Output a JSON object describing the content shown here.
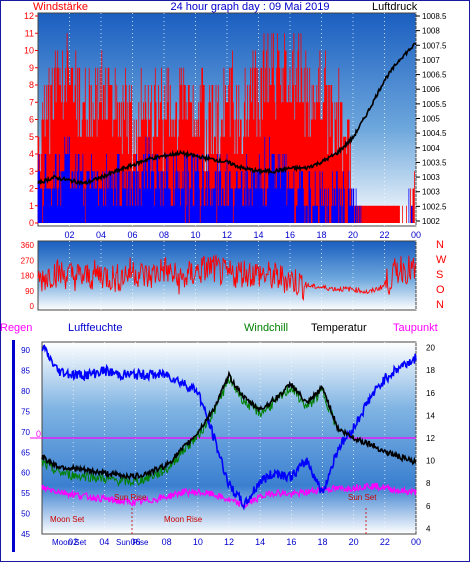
{
  "chart_data": [
    {
      "type": "line",
      "title": "24 hour graph day : 09 Mai 2019",
      "left_axis_label": "Windstärke",
      "right_axis_label": "Luftdruck",
      "x_ticks": [
        "02",
        "04",
        "06",
        "08",
        "10",
        "12",
        "14",
        "16",
        "18",
        "20",
        "22",
        "00"
      ],
      "left_ticks": [
        "0",
        "1",
        "2",
        "3",
        "4",
        "5",
        "6",
        "7",
        "8",
        "9",
        "10",
        "11",
        "12"
      ],
      "right_ticks": [
        "1002",
        "1002.5",
        "1003",
        "1003",
        "1003.5",
        "1004",
        "1004.5",
        "1005",
        "1005.5",
        "1006",
        "1006.5",
        "1007",
        "1007.5",
        "1008",
        "1008.5"
      ],
      "ylim_left": [
        0,
        12
      ],
      "ylim_right": [
        1001.5,
        1008.5
      ],
      "series": [
        {
          "name": "Windstärke",
          "color": "#ff0000",
          "kind": "gust-bars",
          "x": [
            0,
            1,
            2,
            3,
            4,
            5,
            6,
            7,
            8,
            9,
            10,
            11,
            12,
            13,
            14,
            15,
            16,
            17,
            18,
            19,
            20,
            21,
            22,
            23,
            24
          ],
          "values": [
            6,
            9,
            10,
            8,
            9,
            8,
            7,
            8,
            8,
            9,
            8,
            7,
            9,
            8,
            9,
            11,
            10,
            10,
            9,
            8,
            4,
            1,
            1,
            1,
            3
          ]
        },
        {
          "name": "wind-average",
          "color": "#0000ff",
          "kind": "avg-bars",
          "x": [
            0,
            1,
            2,
            3,
            4,
            5,
            6,
            7,
            8,
            9,
            10,
            11,
            12,
            13,
            14,
            15,
            16,
            17,
            18,
            19,
            20,
            21,
            22,
            23,
            24
          ],
          "values": [
            3,
            3,
            4,
            3,
            3,
            3,
            3,
            4,
            3,
            3,
            3,
            3,
            3,
            3,
            3,
            4,
            3,
            2,
            2,
            2,
            2,
            0,
            0,
            0,
            1
          ]
        },
        {
          "name": "Luftdruck",
          "color": "#000000",
          "kind": "line",
          "x": [
            0,
            1,
            2,
            3,
            4,
            5,
            6,
            7,
            8,
            9,
            10,
            11,
            12,
            13,
            14,
            15,
            16,
            17,
            18,
            19,
            20,
            21,
            22,
            23,
            24
          ],
          "values": [
            1002.9,
            1003.1,
            1003.0,
            1002.9,
            1003.1,
            1003.3,
            1003.5,
            1003.7,
            1003.8,
            1003.9,
            1003.8,
            1003.7,
            1003.6,
            1003.4,
            1003.3,
            1003.3,
            1003.4,
            1003.4,
            1003.6,
            1003.9,
            1004.4,
            1005.3,
            1006.3,
            1007.0,
            1007.5
          ]
        }
      ]
    },
    {
      "type": "line",
      "title": "",
      "right_labels": [
        "N",
        "W",
        "S",
        "O",
        "N"
      ],
      "left_ticks": [
        "360",
        "270",
        "180",
        "90",
        "0"
      ],
      "ylim": [
        0,
        360
      ],
      "series": [
        {
          "name": "wind-direction",
          "color": "#ff0000",
          "x": [
            0,
            1,
            2,
            3,
            4,
            5,
            6,
            7,
            8,
            9,
            10,
            11,
            12,
            13,
            14,
            15,
            16,
            17,
            18,
            19,
            20,
            21,
            22,
            23,
            24
          ],
          "values": [
            150,
            200,
            180,
            170,
            190,
            160,
            210,
            170,
            220,
            150,
            200,
            230,
            180,
            200,
            190,
            170,
            160,
            120,
            110,
            100,
            100,
            80,
            120,
            230,
            200
          ]
        }
      ]
    },
    {
      "type": "line",
      "title": "",
      "labels": {
        "regen": "Regen",
        "luftfeuchte": "Luftfeuchte",
        "windchill": "Windchill",
        "temperatur": "Temperatur",
        "taupunkt": "Taupunkt"
      },
      "left_ticks": [
        "45",
        "50",
        "55",
        "60",
        "65",
        "70",
        "75",
        "80",
        "85",
        "90"
      ],
      "right_ticks": [
        "4",
        "6",
        "8",
        "10",
        "12",
        "14",
        "16",
        "18",
        "20"
      ],
      "x_ticks": [
        "02",
        "04",
        "06",
        "08",
        "10",
        "12",
        "14",
        "16",
        "18",
        "20",
        "22",
        "00"
      ],
      "ylim_left": [
        45,
        92
      ],
      "ylim_right": [
        3.5,
        20.5
      ],
      "rain_value": "0",
      "annotations": [
        "Moon Set",
        "Sun Rise",
        "Moon Rise",
        "Sun Set"
      ],
      "x_event_labels": [
        "Moon Set",
        "Sun Rise"
      ],
      "series": [
        {
          "name": "Luftfeuchte",
          "color": "#0000ff",
          "axis": "left",
          "x": [
            0,
            1,
            2,
            3,
            4,
            5,
            6,
            7,
            8,
            9,
            10,
            11,
            12,
            13,
            14,
            15,
            16,
            17,
            18,
            19,
            20,
            21,
            22,
            23,
            24
          ],
          "values": [
            91,
            85,
            84,
            84,
            85,
            84,
            84,
            84,
            84,
            82,
            80,
            69,
            57,
            52,
            58,
            60,
            59,
            63,
            55,
            66,
            71,
            78,
            83,
            86,
            88
          ]
        },
        {
          "name": "Temperatur",
          "color": "#000000",
          "axis": "right",
          "x": [
            0,
            1,
            2,
            3,
            4,
            5,
            6,
            7,
            8,
            9,
            10,
            11,
            12,
            13,
            14,
            15,
            16,
            17,
            18,
            19,
            20,
            21,
            22,
            23,
            24
          ],
          "values": [
            10.3,
            9.5,
            9.3,
            9.1,
            8.9,
            8.7,
            8.6,
            9,
            9.6,
            11,
            12.5,
            14.5,
            17.5,
            15.5,
            14.5,
            15.5,
            16.8,
            15,
            16.5,
            12.8,
            12,
            11.5,
            10.8,
            10.3,
            9.8
          ]
        },
        {
          "name": "Windchill",
          "color": "#008000",
          "axis": "right",
          "x": [
            0,
            1,
            2,
            3,
            4,
            5,
            6,
            7,
            8,
            9,
            10,
            11,
            12,
            13,
            14,
            15,
            16,
            17,
            18,
            19
          ],
          "values": [
            9.8,
            9.0,
            8.7,
            8.6,
            8.4,
            8.2,
            8.1,
            8.6,
            9.2,
            10.8,
            12.2,
            14.2,
            17.2,
            15.2,
            14.2,
            15.2,
            16.5,
            14.7,
            16.2,
            12.6
          ]
        },
        {
          "name": "Taupunkt",
          "color": "#ff00ff",
          "axis": "right",
          "x": [
            0,
            1,
            2,
            3,
            4,
            5,
            6,
            7,
            8,
            9,
            10,
            11,
            12,
            13,
            14,
            15,
            16,
            17,
            18,
            19,
            20,
            21,
            22,
            23,
            24
          ],
          "values": [
            7.6,
            7.3,
            7.0,
            6.8,
            6.6,
            6.4,
            6.3,
            6.5,
            6.8,
            7.2,
            7.2,
            7.0,
            6.5,
            6.0,
            6.8,
            7.2,
            7.0,
            7.2,
            7.5,
            7.5,
            7.6,
            7.8,
            7.6,
            7.3,
            7.2
          ]
        },
        {
          "name": "Regen",
          "color": "#ff00ff",
          "axis": "left",
          "kind": "hline",
          "value": 0
        }
      ]
    }
  ]
}
